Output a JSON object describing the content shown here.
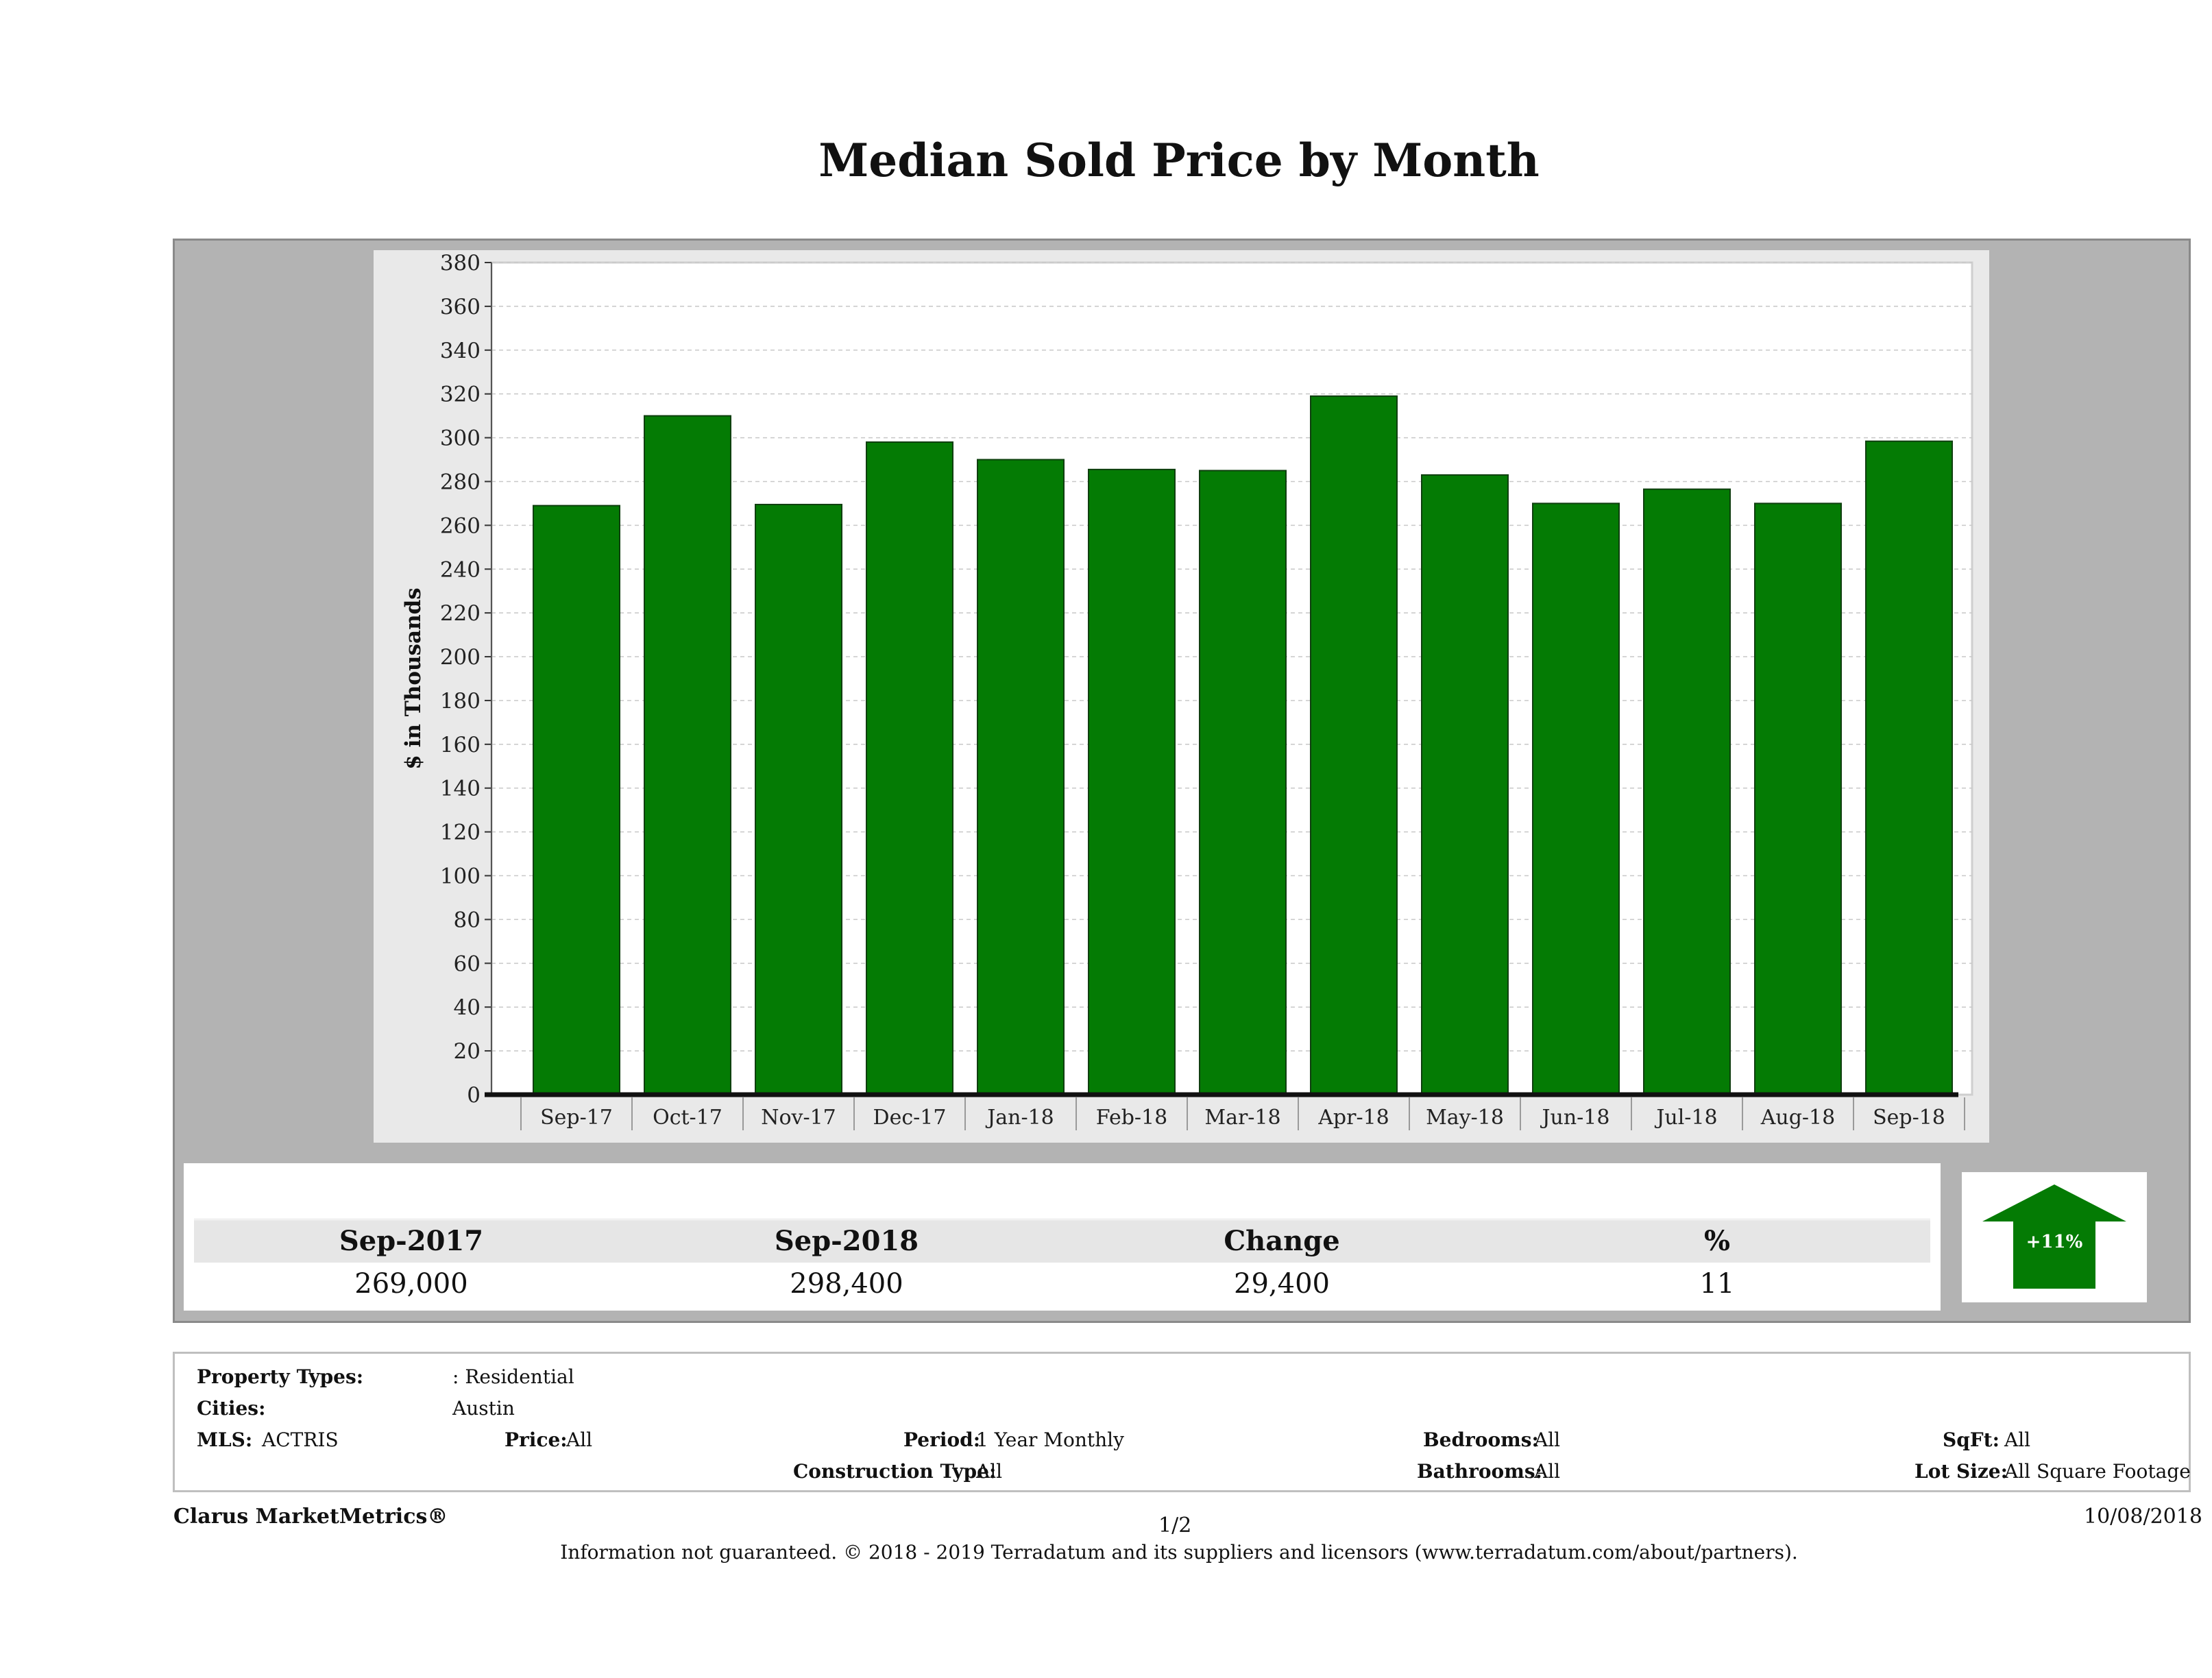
{
  "chart_data": {
    "type": "bar",
    "title": "Median Sold Price by Month",
    "ylabel": "$ in Thousands",
    "xlabel": "",
    "categories": [
      "Sep-17",
      "Oct-17",
      "Nov-17",
      "Dec-17",
      "Jan-18",
      "Feb-18",
      "Mar-18",
      "Apr-18",
      "May-18",
      "Jun-18",
      "Jul-18",
      "Aug-18",
      "Sep-18"
    ],
    "values": [
      269,
      310,
      269.5,
      298,
      290,
      285.5,
      285,
      319,
      283,
      270,
      276.5,
      270,
      298.4
    ],
    "ylim": [
      0,
      380
    ],
    "yticks": [
      0,
      20,
      40,
      60,
      80,
      100,
      120,
      140,
      160,
      180,
      200,
      220,
      240,
      260,
      280,
      300,
      320,
      340,
      360,
      380
    ],
    "grid": true,
    "bar_color": "#047b04"
  },
  "summary": {
    "col1_label": "Sep-2017",
    "col1_value": "269,000",
    "col2_label": "Sep-2018",
    "col2_value": "298,400",
    "col3_label": "Change",
    "col3_value": "29,400",
    "col4_label": "%",
    "col4_value": "11",
    "arrow_label": "+11%",
    "arrow_color": "#047b04"
  },
  "info": {
    "property_types_label": "Property Types:",
    "property_types_value": ": Residential",
    "cities_label": "Cities:",
    "cities_value": "Austin",
    "mls_label": "MLS:",
    "mls_value": "ACTRIS",
    "price_label": "Price:",
    "price_value": "All",
    "period_label": "Period:",
    "period_value": "1 Year Monthly",
    "construction_label": "Construction Type:",
    "construction_value": "All",
    "bedrooms_label": "Bedrooms:",
    "bedrooms_value": "All",
    "bathrooms_label": "Bathrooms:",
    "bathrooms_value": "All",
    "sqft_label": "SqFt:",
    "sqft_value": "All",
    "lotsize_label": "Lot Size:",
    "lotsize_value": "All Square Footage"
  },
  "footer": {
    "brand": "Clarus MarketMetrics®",
    "page": "1/2",
    "date": "10/08/2018",
    "disclaimer": "Information not guaranteed. © 2018 - 2019 Terradatum and its suppliers and licensors (www.terradatum.com/about/partners)."
  }
}
